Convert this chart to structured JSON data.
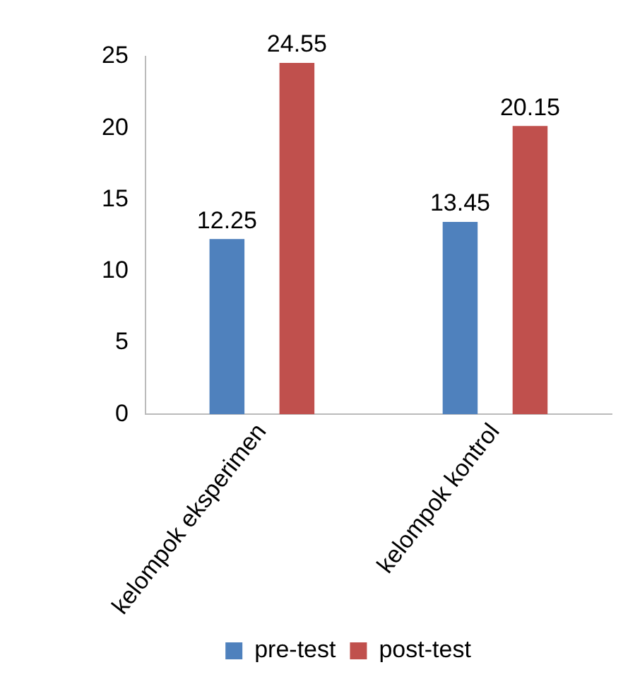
{
  "chart_data": {
    "type": "bar",
    "categories": [
      "kelompok eksperimen",
      "kelompok kontrol"
    ],
    "series": [
      {
        "name": "pre-test",
        "color": "#4f81bd",
        "values": [
          12.25,
          13.45
        ]
      },
      {
        "name": "post-test",
        "color": "#c0504d",
        "values": [
          24.55,
          20.15
        ]
      }
    ],
    "ylim": [
      0,
      25
    ],
    "yticks": [
      0,
      5,
      10,
      15,
      20,
      25
    ],
    "grid": false,
    "legend": "bottom",
    "data_labels": true
  }
}
